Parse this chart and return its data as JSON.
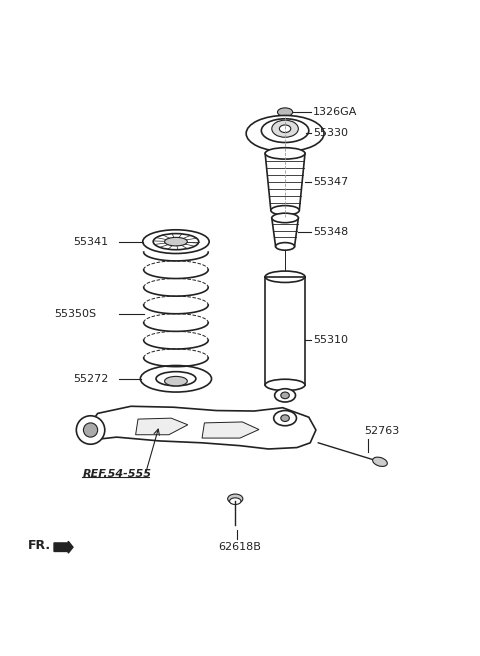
{
  "background_color": "#ffffff",
  "line_color": "#222222",
  "label_color": "#222222",
  "label_font": 8.0,
  "parts": [
    {
      "id": "1326GA",
      "label": "1326GA"
    },
    {
      "id": "55330",
      "label": "55330"
    },
    {
      "id": "55347",
      "label": "55347"
    },
    {
      "id": "55348",
      "label": "55348"
    },
    {
      "id": "55341",
      "label": "55341"
    },
    {
      "id": "55350S",
      "label": "55350S"
    },
    {
      "id": "55272",
      "label": "55272"
    },
    {
      "id": "55310",
      "label": "55310"
    },
    {
      "id": "52763",
      "label": "52763"
    },
    {
      "id": "REF.54-555",
      "label": "REF.54-555"
    },
    {
      "id": "62618B",
      "label": "62618B"
    }
  ],
  "fr_label": "FR."
}
